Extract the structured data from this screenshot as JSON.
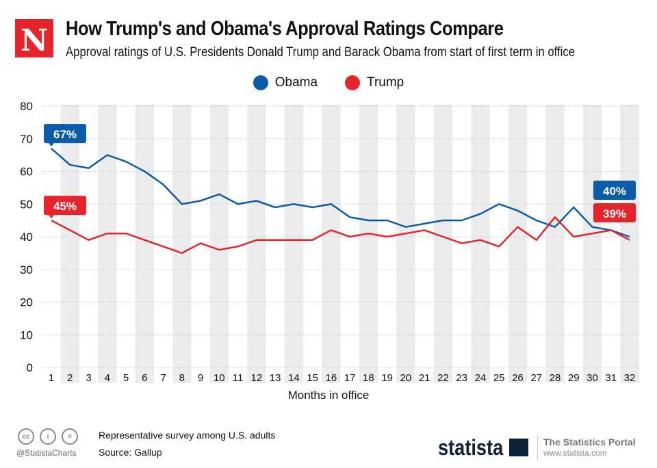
{
  "header": {
    "logo_letter": "N",
    "title": "How Trump's and Obama's Approval Ratings Compare",
    "subtitle": "Approval ratings of U.S. Presidents Donald Trump and Barack Obama from start of first term in office"
  },
  "chart_data": {
    "type": "line",
    "title": "How Trump's and Obama's Approval Ratings Compare",
    "xlabel": "Months in office",
    "ylabel": "",
    "x": [
      1,
      2,
      3,
      4,
      5,
      6,
      7,
      8,
      9,
      10,
      11,
      12,
      13,
      14,
      15,
      16,
      17,
      18,
      19,
      20,
      21,
      22,
      23,
      24,
      25,
      26,
      27,
      28,
      29,
      30,
      31,
      32
    ],
    "ylim": [
      0,
      80
    ],
    "yticks": [
      0,
      10,
      20,
      30,
      40,
      50,
      60,
      70,
      80
    ],
    "grid": true,
    "legend": "top-center",
    "series": [
      {
        "name": "Obama",
        "color": "#0a5ca8",
        "values": [
          67,
          62,
          61,
          65,
          63,
          60,
          56,
          50,
          51,
          53,
          50,
          51,
          49,
          50,
          49,
          50,
          46,
          45,
          45,
          43,
          44,
          45,
          45,
          47,
          50,
          48,
          45,
          43,
          49,
          43,
          42,
          40
        ],
        "labels": {
          "first": "67%",
          "last": "40%"
        }
      },
      {
        "name": "Trump",
        "color": "#e5252b",
        "values": [
          45,
          42,
          39,
          41,
          41,
          39,
          37,
          35,
          38,
          36,
          37,
          39,
          39,
          39,
          39,
          42,
          40,
          41,
          40,
          41,
          42,
          40,
          38,
          39,
          37,
          43,
          39,
          46,
          40,
          41,
          42,
          39
        ],
        "labels": {
          "first": "45%",
          "last": "39%"
        }
      }
    ]
  },
  "footer": {
    "note": "Representative survey among U.S. adults",
    "source": "Source: Gallup",
    "handle": "@StatistaCharts",
    "brand": "statista",
    "portal": "The Statistics Portal",
    "url": "www.statista.com",
    "cc_icons": [
      "cc",
      "by",
      "nd"
    ]
  }
}
